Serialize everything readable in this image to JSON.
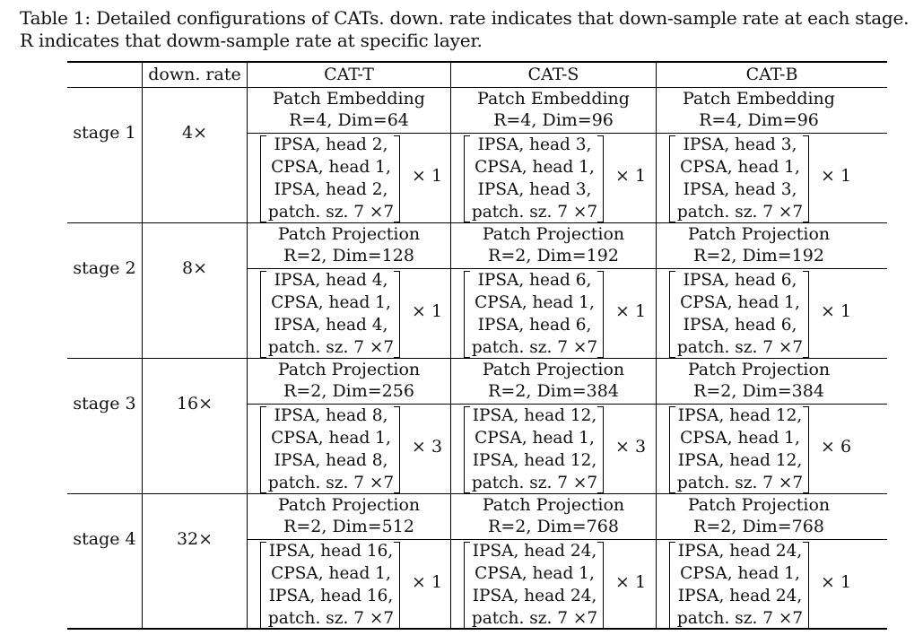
{
  "caption": "Table 1: Detailed configurations of CATs. down. rate indicates that down-sample rate at each stage.\nR indicates that dowm-sample rate at specific layer.",
  "columns": {
    "rate": "down. rate",
    "models": [
      "CAT-T",
      "CAT-S",
      "CAT-B"
    ]
  },
  "stages": [
    {
      "label": "stage 1",
      "rate": "4×",
      "models": [
        {
          "embed": "Patch Embedding",
          "params": "R=4, Dim=64",
          "block": [
            "IPSA, head 2,",
            "CPSA, head 1,",
            "IPSA, head 2,",
            "patch. sz. 7 ×7"
          ],
          "repeat": "× 1"
        },
        {
          "embed": "Patch Embedding",
          "params": "R=4, Dim=96",
          "block": [
            "IPSA, head 3,",
            "CPSA, head 1,",
            "IPSA, head 3,",
            "patch. sz. 7 ×7"
          ],
          "repeat": "× 1"
        },
        {
          "embed": "Patch Embedding",
          "params": "R=4, Dim=96",
          "block": [
            "IPSA, head 3,",
            "CPSA, head 1,",
            "IPSA, head 3,",
            "patch. sz. 7 ×7"
          ],
          "repeat": "× 1"
        }
      ]
    },
    {
      "label": "stage 2",
      "rate": "8×",
      "models": [
        {
          "embed": "Patch Projection",
          "params": "R=2, Dim=128",
          "block": [
            "IPSA, head 4,",
            "CPSA, head 1,",
            "IPSA, head 4,",
            "patch. sz. 7 ×7"
          ],
          "repeat": "× 1"
        },
        {
          "embed": "Patch Projection",
          "params": "R=2, Dim=192",
          "block": [
            "IPSA, head 6,",
            "CPSA, head 1,",
            "IPSA, head 6,",
            "patch. sz. 7 ×7"
          ],
          "repeat": "× 1"
        },
        {
          "embed": "Patch Projection",
          "params": "R=2, Dim=192",
          "block": [
            "IPSA, head 6,",
            "CPSA, head 1,",
            "IPSA, head 6,",
            "patch. sz. 7 ×7"
          ],
          "repeat": "× 1"
        }
      ]
    },
    {
      "label": "stage 3",
      "rate": "16×",
      "models": [
        {
          "embed": "Patch Projection",
          "params": "R=2, Dim=256",
          "block": [
            "IPSA, head 8,",
            "CPSA, head 1,",
            "IPSA, head 8,",
            "patch. sz. 7 ×7"
          ],
          "repeat": "× 3"
        },
        {
          "embed": "Patch Projection",
          "params": "R=2, Dim=384",
          "block": [
            "IPSA, head 12,",
            "CPSA, head 1,",
            "IPSA, head 12,",
            "patch. sz. 7 ×7"
          ],
          "repeat": "× 3"
        },
        {
          "embed": "Patch Projection",
          "params": "R=2, Dim=384",
          "block": [
            "IPSA, head 12,",
            "CPSA, head 1,",
            "IPSA, head 12,",
            "patch. sz. 7 ×7"
          ],
          "repeat": "× 6"
        }
      ]
    },
    {
      "label": "stage 4",
      "rate": "32×",
      "models": [
        {
          "embed": "Patch Projection",
          "params": "R=2, Dim=512",
          "block": [
            "IPSA, head 16,",
            "CPSA, head 1,",
            "IPSA, head 16,",
            "patch. sz. 7 ×7"
          ],
          "repeat": "× 1"
        },
        {
          "embed": "Patch Projection",
          "params": "R=2, Dim=768",
          "block": [
            "IPSA, head 24,",
            "CPSA, head 1,",
            "IPSA, head 24,",
            "patch. sz. 7 ×7"
          ],
          "repeat": "× 1"
        },
        {
          "embed": "Patch Projection",
          "params": "R=2, Dim=768",
          "block": [
            "IPSA, head 24,",
            "CPSA, head 1,",
            "IPSA, head 24,",
            "patch. sz. 7 ×7"
          ],
          "repeat": "× 1"
        }
      ]
    }
  ]
}
